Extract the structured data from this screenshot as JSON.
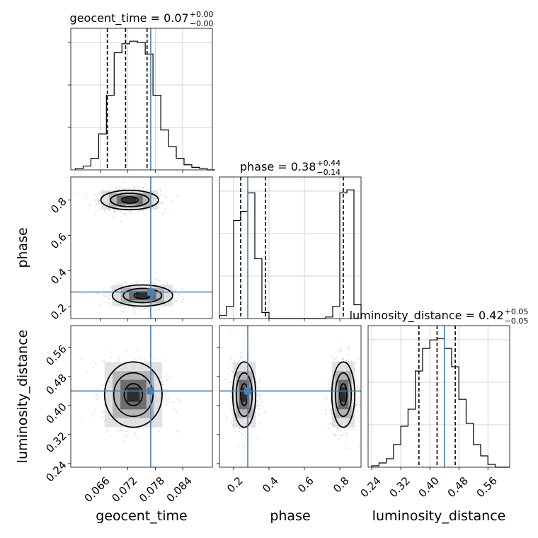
{
  "chart_data": [
    {
      "type": "histogram",
      "panel": "geocent_time-marginal",
      "title": "geocent_time = 0.07",
      "title_sup": "+0.00",
      "title_sub": "−0.00",
      "x": [
        0.0605,
        0.0622,
        0.0639,
        0.0656,
        0.0673,
        0.069,
        0.0707,
        0.0724,
        0.0741,
        0.0758,
        0.0775,
        0.0792,
        0.0809,
        0.0826,
        0.0843,
        0.086,
        0.0877,
        0.0894
      ],
      "counts": [
        1,
        3,
        9,
        28,
        58,
        91,
        98,
        100,
        99,
        90,
        58,
        31,
        18,
        9,
        4,
        2,
        1,
        0
      ],
      "quantiles": [
        0.0675,
        0.0715,
        0.0762
      ],
      "truth": 0.077,
      "xlim": [
        0.0595,
        0.0905
      ],
      "grid": true
    },
    {
      "type": "histogram",
      "panel": "phase-marginal",
      "title": "phase = 0.38",
      "title_sup": "+0.44",
      "title_sub": "−0.14",
      "x": [
        0.12,
        0.16,
        0.2,
        0.24,
        0.28,
        0.32,
        0.36,
        0.4,
        0.44,
        0.48,
        0.52,
        0.56,
        0.6,
        0.64,
        0.68,
        0.72,
        0.76,
        0.8,
        0.84,
        0.88
      ],
      "counts": [
        2,
        8,
        64,
        70,
        82,
        39,
        4,
        0,
        0,
        0,
        0,
        0,
        0,
        0,
        0,
        1,
        8,
        82,
        84,
        9
      ],
      "quantiles": [
        0.24,
        0.38,
        0.82
      ],
      "truth": 0.28,
      "xlim": [
        0.12,
        0.92
      ],
      "grid": true
    },
    {
      "type": "histogram",
      "panel": "luminosity_distance-marginal",
      "title": "luminosity_distance = 0.42",
      "title_sup": "+0.05",
      "title_sub": "−0.05",
      "x": [
        0.24,
        0.26,
        0.28,
        0.3,
        0.32,
        0.34,
        0.36,
        0.38,
        0.4,
        0.42,
        0.44,
        0.46,
        0.48,
        0.5,
        0.52,
        0.54,
        0.56,
        0.58,
        0.6
      ],
      "counts": [
        1,
        3,
        6,
        16,
        29,
        41,
        68,
        84,
        90,
        91,
        84,
        71,
        48,
        31,
        16,
        8,
        2,
        0,
        0
      ],
      "quantiles": [
        0.37,
        0.42,
        0.47
      ],
      "truth": 0.44,
      "xlim": [
        0.23,
        0.62
      ],
      "grid": true
    },
    {
      "type": "contour",
      "panel": "geocent_time-phase",
      "xlim": [
        0.0595,
        0.0905
      ],
      "ylim": [
        0.13,
        0.93
      ],
      "truth": [
        0.077,
        0.28
      ],
      "clusters": [
        {
          "cx": 0.0724,
          "cy": 0.8,
          "rx": [
            0.0018,
            0.0042,
            0.0063
          ],
          "ry": [
            0.018,
            0.038,
            0.055
          ]
        },
        {
          "cx": 0.0752,
          "cy": 0.26,
          "rx": [
            0.0018,
            0.0042,
            0.0066
          ],
          "ry": [
            0.018,
            0.04,
            0.06
          ]
        }
      ]
    },
    {
      "type": "contour",
      "panel": "geocent_time-luminosity_distance",
      "xlim": [
        0.0595,
        0.0905
      ],
      "ylim": [
        0.23,
        0.62
      ],
      "truth": [
        0.077,
        0.44
      ],
      "clusters": [
        {
          "cx": 0.0732,
          "cy": 0.43,
          "rx": [
            0.002,
            0.0043,
            0.0063
          ],
          "ry": [
            0.03,
            0.06,
            0.09
          ]
        }
      ]
    },
    {
      "type": "contour",
      "panel": "phase-luminosity_distance",
      "xlim": [
        0.12,
        0.92
      ],
      "ylim": [
        0.23,
        0.62
      ],
      "truth": [
        0.28,
        0.44
      ],
      "clusters": [
        {
          "cx": 0.26,
          "cy": 0.43,
          "rx": [
            0.02,
            0.045,
            0.065
          ],
          "ry": [
            0.03,
            0.06,
            0.09
          ]
        },
        {
          "cx": 0.82,
          "cy": 0.43,
          "rx": [
            0.02,
            0.045,
            0.065
          ],
          "ry": [
            0.03,
            0.06,
            0.09
          ]
        }
      ]
    }
  ],
  "axes": {
    "xlabels": [
      "geocent_time",
      "phase",
      "luminosity_distance"
    ],
    "ylabels": [
      "phase",
      "luminosity_distance"
    ],
    "geocent_time_ticks": [
      "0.066",
      "0.072",
      "0.078",
      "0.084"
    ],
    "phase_ticks": [
      "0.2",
      "0.4",
      "0.6",
      "0.8"
    ],
    "luminosity_distance_ticks": [
      "0.24",
      "0.32",
      "0.40",
      "0.48",
      "0.56"
    ]
  },
  "colors": {
    "truth": "#4682b4",
    "hist": "#000000",
    "grid": "#c8c8c8",
    "points": "#808080"
  }
}
